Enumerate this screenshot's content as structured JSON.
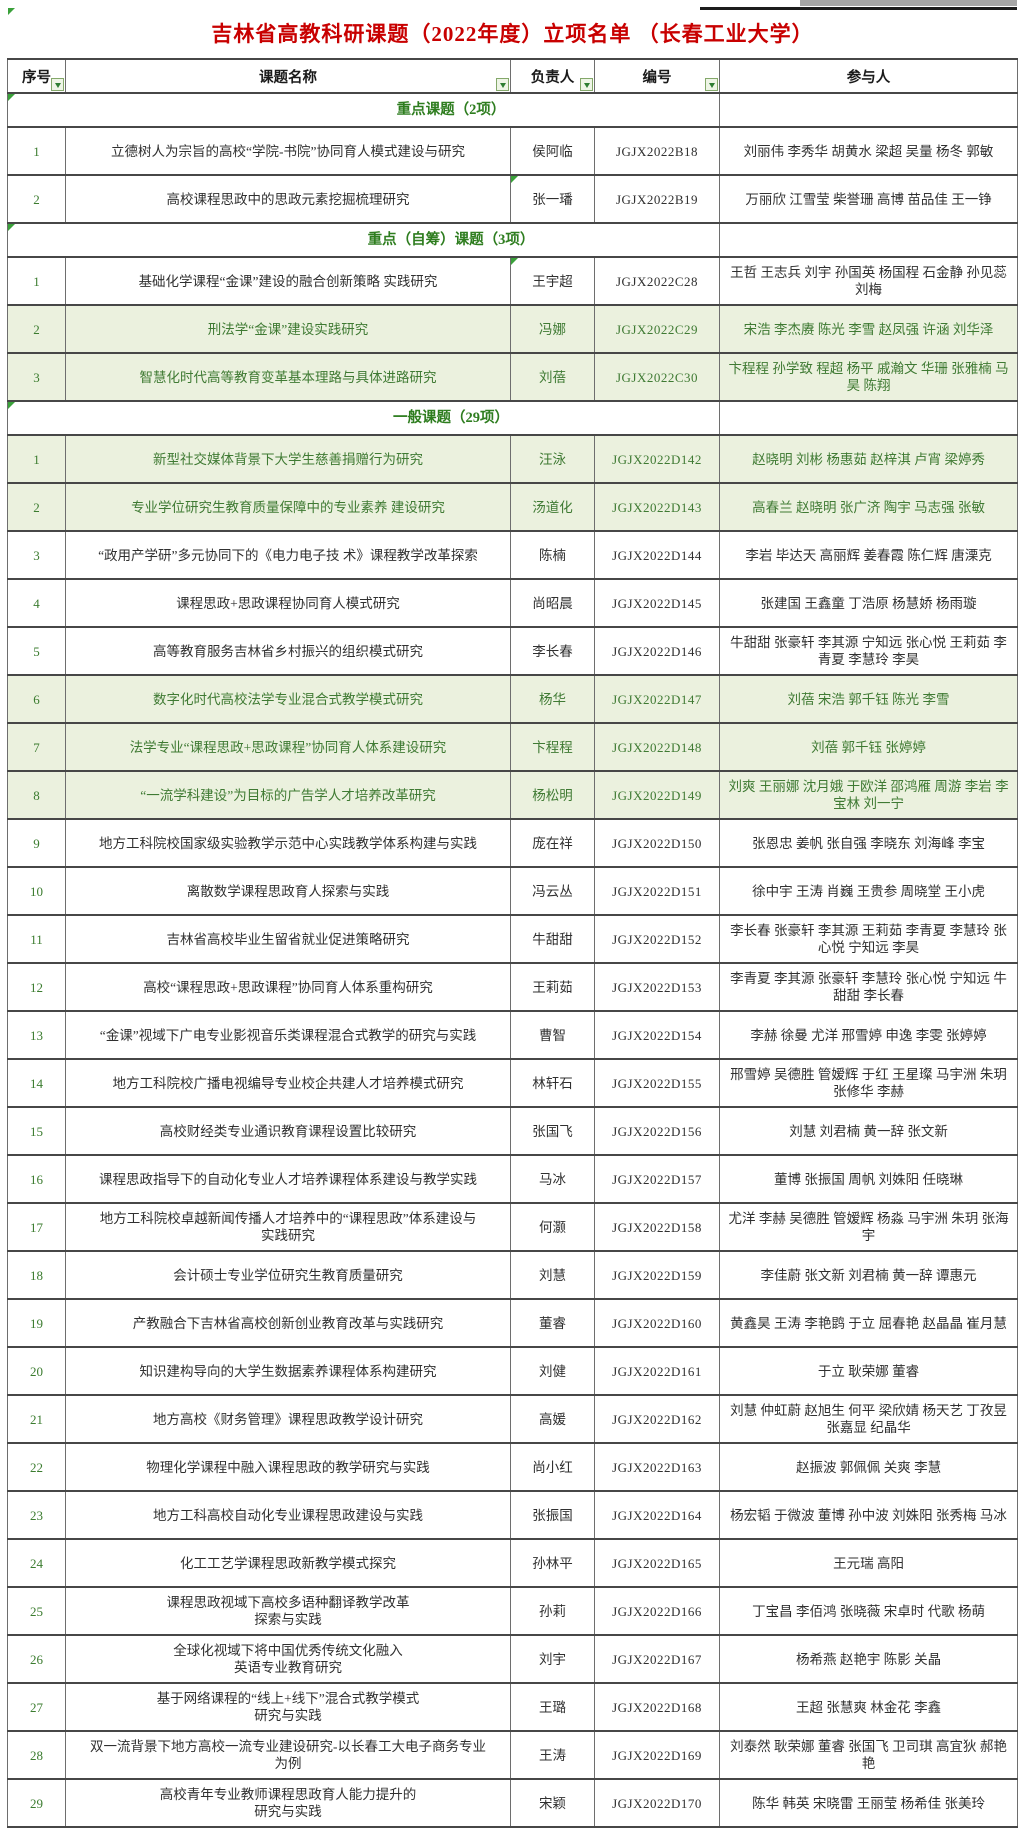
{
  "title": "吉林省高教科研课题（2022年度）立项名单 （长春工业大学）",
  "colors": {
    "title_text": "#c80000",
    "section_text": "#2e7d1f",
    "highlight_row_bg": "#ebf1de",
    "highlight_text": "#3f7a33",
    "body_text": "#303030",
    "border": "#474747"
  },
  "header": {
    "columns": [
      {
        "label": "序号",
        "filter": true
      },
      {
        "label": "课题名称",
        "filter": true
      },
      {
        "label": "负责人",
        "filter": true
      },
      {
        "label": "编号",
        "filter": true
      },
      {
        "label": "参与人",
        "filter": false
      }
    ]
  },
  "sections": [
    {
      "label": "重点课题（2项）",
      "rows": [
        {
          "no": "1",
          "topic": "立德树人为宗旨的高校“学院-书院”协同育人模式建设与研究",
          "leader": "侯阿临",
          "code": "JGJX2022B18",
          "participants": "刘丽伟 李秀华 胡黄水 梁超 吴量 杨冬 郭敏",
          "highlight": false
        },
        {
          "no": "2",
          "topic": "高校课程思政中的思政元素挖掘梳理研究",
          "leader": "张一璠",
          "code": "JGJX2022B19",
          "participants": "万丽欣 江雪莹 柴誉珊 高博 苗品佳 王一铮",
          "highlight": false,
          "leader_flag": true
        }
      ]
    },
    {
      "label": "重点（自筹）课题（3项）",
      "rows": [
        {
          "no": "1",
          "topic": "基础化学课程“金课”建设的融合创新策略 实践研究",
          "leader": "王宇超",
          "code": "JGJX2022C28",
          "participants": "王哲 王志兵 刘宇 孙国英 杨国程 石金静 孙见蕊 刘梅",
          "highlight": false,
          "leader_flag": true
        },
        {
          "no": "2",
          "topic": "刑法学“金课”建设实践研究",
          "leader": "冯娜",
          "code": "JGJX2022C29",
          "participants": "宋浩 李杰赓 陈光 李雪 赵凤强 许涵 刘华泽",
          "highlight": true
        },
        {
          "no": "3",
          "topic": "智慧化时代高等教育变革基本理路与具体进路研究",
          "leader": "刘蓓",
          "code": "JGJX2022C30",
          "participants": "卞程程 孙学致 程超 杨平 戚瀚文 华珊 张雅楠 马昊 陈翔",
          "highlight": true
        }
      ]
    },
    {
      "label": "一般课题（29项）",
      "rows": [
        {
          "no": "1",
          "topic": "新型社交媒体背景下大学生慈善捐赠行为研究",
          "leader": "汪泳",
          "code": "JGJX2022D142",
          "participants": "赵晓明 刘彬 杨惠茹 赵梓淇 卢宵 梁婷秀",
          "highlight": true
        },
        {
          "no": "2",
          "topic": "专业学位研究生教育质量保障中的专业素养 建设研究",
          "leader": "汤道化",
          "code": "JGJX2022D143",
          "participants": "高春兰 赵晓明 张广济 陶宇 马志强 张敏",
          "highlight": true
        },
        {
          "no": "3",
          "topic": "“政用产学研”多元协同下的《电力电子技 术》课程教学改革探索",
          "leader": "陈楠",
          "code": "JGJX2022D144",
          "participants": "李岩 毕达天 高丽辉 姜春霞 陈仁辉 唐溧克",
          "highlight": false
        },
        {
          "no": "4",
          "topic": "课程思政+思政课程协同育人模式研究",
          "leader": "尚昭晨",
          "code": "JGJX2022D145",
          "participants": "张建国 王鑫童 丁浩原 杨慧娇 杨雨璇",
          "highlight": false
        },
        {
          "no": "5",
          "topic": "高等教育服务吉林省乡村振兴的组织模式研究",
          "leader": "李长春",
          "code": "JGJX2022D146",
          "participants": "牛甜甜 张豪轩 李其源 宁知远 张心悦 王莉茹 李青夏 李慧玲 李昊",
          "highlight": false
        },
        {
          "no": "6",
          "topic": "数字化时代高校法学专业混合式教学模式研究",
          "leader": "杨华",
          "code": "JGJX2022D147",
          "participants": "刘蓓 宋浩 郭千钰 陈光 李雪",
          "highlight": true
        },
        {
          "no": "7",
          "topic": "法学专业“课程思政+思政课程”协同育人体系建设研究",
          "leader": "卞程程",
          "code": "JGJX2022D148",
          "participants": "刘蓓 郭千钰 张婷婷",
          "highlight": true
        },
        {
          "no": "8",
          "topic": "“一流学科建设”为目标的广告学人才培养改革研究",
          "leader": "杨松明",
          "code": "JGJX2022D149",
          "participants": "刘爽 王丽娜 沈月娥 于欧洋 邵鸿雁 周游 李岩 李宝林 刘一宁",
          "highlight": true
        },
        {
          "no": "9",
          "topic": "地方工科院校国家级实验教学示范中心实践教学体系构建与实践",
          "leader": "庞在祥",
          "code": "JGJX2022D150",
          "participants": "张恩忠 姜帆 张自强 李晓东 刘海峰 李宝",
          "highlight": false
        },
        {
          "no": "10",
          "topic": "离散数学课程思政育人探索与实践",
          "leader": "冯云丛",
          "code": "JGJX2022D151",
          "participants": "徐中宇 王涛 肖巍 王贵参 周晓堂 王小虎",
          "highlight": false
        },
        {
          "no": "11",
          "topic": "吉林省高校毕业生留省就业促进策略研究",
          "leader": "牛甜甜",
          "code": "JGJX2022D152",
          "participants": "李长春 张豪轩 李其源 王莉茹 李青夏 李慧玲 张心悦 宁知远 李昊",
          "highlight": false
        },
        {
          "no": "12",
          "topic": "高校“课程思政+思政课程”协同育人体系重构研究",
          "leader": "王莉茹",
          "code": "JGJX2022D153",
          "participants": "李青夏 李其源 张豪轩 李慧玲 张心悦 宁知远 牛甜甜 李长春",
          "highlight": false
        },
        {
          "no": "13",
          "topic": "“金课”视域下广电专业影视音乐类课程混合式教学的研究与实践",
          "leader": "曹智",
          "code": "JGJX2022D154",
          "participants": "李赫 徐曼 尤洋 邢雪婷 申逸 李雯 张婷婷",
          "highlight": false
        },
        {
          "no": "14",
          "topic": "地方工科院校广播电视编导专业校企共建人才培养模式研究",
          "leader": "林轩石",
          "code": "JGJX2022D155",
          "participants": "邢雪婷 吴德胜 管嫒辉 于红 王星璨 马宇洲 朱玥 张修华 李赫",
          "highlight": false
        },
        {
          "no": "15",
          "topic": "高校财经类专业通识教育课程设置比较研究",
          "leader": "张国飞",
          "code": "JGJX2022D156",
          "participants": "刘慧 刘君楠 黄一辞 张文新",
          "highlight": false
        },
        {
          "no": "16",
          "topic": "课程思政指导下的自动化专业人才培养课程体系建设与教学实践",
          "leader": "马冰",
          "code": "JGJX2022D157",
          "participants": "董博 张振国 周帆 刘姝阳 任晓琳",
          "highlight": false
        },
        {
          "no": "17",
          "topic": "地方工科院校卓越新闻传播人才培养中的“课程思政”体系建设与\n实践研究",
          "leader": "何灏",
          "code": "JGJX2022D158",
          "participants": "尤洋 李赫 吴德胜 管嫒辉 杨淼 马宇洲 朱玥 张海宇",
          "highlight": false
        },
        {
          "no": "18",
          "topic": "会计硕士专业学位研究生教育质量研究",
          "leader": "刘慧",
          "code": "JGJX2022D159",
          "participants": "李佳蔚 张文新 刘君楠 黄一辞 谭惠元",
          "highlight": false
        },
        {
          "no": "19",
          "topic": "产教融合下吉林省高校创新创业教育改革与实践研究",
          "leader": "董睿",
          "code": "JGJX2022D160",
          "participants": "黄鑫昊 王涛 李艳鹍 于立 屈春艳 赵晶晶 崔月慧",
          "highlight": false
        },
        {
          "no": "20",
          "topic": "知识建构导向的大学生数据素养课程体系构建研究",
          "leader": "刘健",
          "code": "JGJX2022D161",
          "participants": "于立 耿荣娜 董睿",
          "highlight": false
        },
        {
          "no": "21",
          "topic": "地方高校《财务管理》课程思政教学设计研究",
          "leader": "高媛",
          "code": "JGJX2022D162",
          "participants": "刘慧 仲虹蔚 赵旭生 何平 梁欣婧 杨天艺 丁孜昱 张嘉显 纪晶华",
          "highlight": false
        },
        {
          "no": "22",
          "topic": "物理化学课程中融入课程思政的教学研究与实践",
          "leader": "尚小红",
          "code": "JGJX2022D163",
          "participants": "赵振波 郭佩佩 关爽 李慧",
          "highlight": false
        },
        {
          "no": "23",
          "topic": "地方工科高校自动化专业课程思政建设与实践",
          "leader": "张振国",
          "code": "JGJX2022D164",
          "participants": "杨宏韬 于微波 董博 孙中波 刘姝阳 张秀梅 马冰",
          "highlight": false
        },
        {
          "no": "24",
          "topic": "化工工艺学课程思政新教学模式探究",
          "leader": "孙林平",
          "code": "JGJX2022D165",
          "participants": "王元瑞 高阳",
          "highlight": false
        },
        {
          "no": "25",
          "topic": "课程思政视域下高校多语种翻译教学改革\n探索与实践",
          "leader": "孙莉",
          "code": "JGJX2022D166",
          "participants": "丁宝昌 李佰鸿 张晓薇 宋卓时 代歌 杨萌",
          "highlight": false
        },
        {
          "no": "26",
          "topic": "全球化视域下将中国优秀传统文化融入\n英语专业教育研究",
          "leader": "刘宇",
          "code": "JGJX2022D167",
          "participants": "杨希燕 赵艳宇 陈影 关晶",
          "highlight": false
        },
        {
          "no": "27",
          "topic": "基于网络课程的“线上+线下”混合式教学模式\n研究与实践",
          "leader": "王璐",
          "code": "JGJX2022D168",
          "participants": "王超 张慧爽 林金花 李鑫",
          "highlight": false
        },
        {
          "no": "28",
          "topic": "双一流背景下地方高校一流专业建设研究-以长春工大电子商务专业\n为例",
          "leader": "王涛",
          "code": "JGJX2022D169",
          "participants": "刘泰然 耿荣娜 董睿 张国飞 卫司琪 高宜狄 郝艳艳",
          "highlight": false
        },
        {
          "no": "29",
          "topic": "高校青年专业教师课程思政育人能力提升的\n研究与实践",
          "leader": "宋颖",
          "code": "JGJX2022D170",
          "participants": "陈华 韩英 宋晓雷 王丽莹 杨希佳 张美玲",
          "highlight": false
        }
      ]
    }
  ]
}
